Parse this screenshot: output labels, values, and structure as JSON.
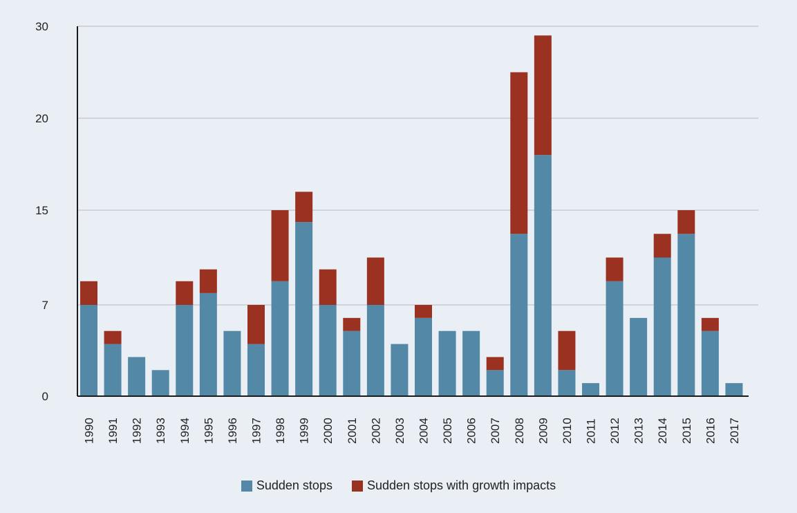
{
  "chart_data": {
    "type": "bar",
    "stacked": true,
    "categories": [
      "1990",
      "1991",
      "1992",
      "1993",
      "1994",
      "1995",
      "1996",
      "1997",
      "1998",
      "1999",
      "2000",
      "2001",
      "2002",
      "2003",
      "2004",
      "2005",
      "2006",
      "2007",
      "2008",
      "2009",
      "2010",
      "2011",
      "2012",
      "2013",
      "2014",
      "2015",
      "2016",
      "2017"
    ],
    "series": [
      {
        "name": "Sudden stops",
        "color": "#5388a6",
        "values": [
          7,
          4,
          3,
          2,
          7,
          8,
          5,
          4,
          9,
          14,
          7,
          5,
          7,
          4,
          6,
          5,
          5,
          2,
          13,
          18,
          2,
          1,
          9,
          6,
          11,
          13,
          5,
          1
        ]
      },
      {
        "name": "Sudden stops with growth impacts",
        "color": "#9b3121",
        "values": [
          2,
          1,
          0,
          0,
          2,
          2,
          0,
          3,
          6,
          2,
          3,
          1,
          4,
          0,
          1,
          0,
          0,
          1,
          12,
          11,
          3,
          0,
          2,
          0,
          2,
          2,
          1,
          0
        ]
      }
    ],
    "yticks": [
      0,
      7,
      15,
      20,
      30
    ],
    "ylim": [
      0,
      30
    ],
    "xlabel": "",
    "ylabel": "",
    "grid": true,
    "legend_position": "bottom"
  }
}
